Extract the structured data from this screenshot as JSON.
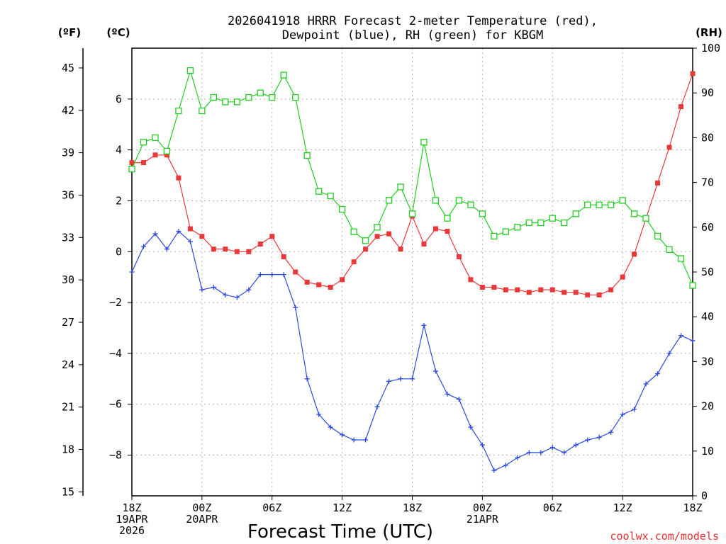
{
  "chart_data": {
    "type": "line",
    "title_lines": [
      "2026041918 HRRR Forecast 2-meter Temperature (red),",
      "Dewpoint (blue), RH (green) for KBGM"
    ],
    "xlabel": "Forecast Time (UTC)",
    "credit": "coolwx.com/models",
    "axis_units": {
      "left_outer": "(ºF)",
      "left_inner": "(ºC)",
      "right": "(RH)"
    },
    "x_range_hours": [
      0,
      48
    ],
    "x_ticks": [
      {
        "hour": 0,
        "lines": [
          "18Z",
          "19APR",
          "2026"
        ]
      },
      {
        "hour": 6,
        "lines": [
          "00Z",
          "20APR"
        ]
      },
      {
        "hour": 12,
        "lines": [
          "06Z"
        ]
      },
      {
        "hour": 18,
        "lines": [
          "12Z"
        ]
      },
      {
        "hour": 24,
        "lines": [
          "18Z"
        ]
      },
      {
        "hour": 30,
        "lines": [
          "00Z",
          "21APR"
        ]
      },
      {
        "hour": 36,
        "lines": [
          "06Z"
        ]
      },
      {
        "hour": 42,
        "lines": [
          "12Z"
        ]
      },
      {
        "hour": 48,
        "lines": [
          "18Z"
        ]
      }
    ],
    "celsius_range": [
      -9.6,
      8.0
    ],
    "celsius_ticks": [
      "6",
      "4",
      "2",
      "0",
      "−2",
      "−4",
      "−6",
      "−8"
    ],
    "fahrenheit_ticks": [
      "45",
      "42",
      "39",
      "36",
      "33",
      "30",
      "27",
      "24",
      "21",
      "18",
      "15"
    ],
    "rh_range": [
      0,
      100
    ],
    "rh_ticks": [
      "100",
      "90",
      "80",
      "70",
      "60",
      "50",
      "40",
      "30",
      "20",
      "10",
      "0"
    ],
    "grid": true,
    "series": [
      {
        "name": "Temperature",
        "unit": "C",
        "color": "#e83838",
        "marker": "filled-square",
        "values": [
          3.5,
          3.5,
          3.8,
          3.8,
          2.9,
          0.9,
          0.6,
          0.1,
          0.1,
          0.0,
          0.0,
          0.3,
          0.6,
          -0.2,
          -0.8,
          -1.2,
          -1.3,
          -1.4,
          -1.1,
          -0.4,
          0.1,
          0.6,
          0.7,
          0.1,
          1.4,
          0.3,
          0.9,
          0.8,
          -0.2,
          -1.1,
          -1.4,
          -1.4,
          -1.5,
          -1.5,
          -1.6,
          -1.5,
          -1.5,
          -1.6,
          -1.6,
          -1.7,
          -1.7,
          -1.5,
          -1.0,
          -0.1,
          1.3,
          2.7,
          4.1,
          5.7,
          7.0
        ]
      },
      {
        "name": "Dewpoint",
        "unit": "C",
        "color": "#2a4adf",
        "marker": "plus",
        "values": [
          -0.8,
          0.2,
          0.7,
          0.1,
          0.8,
          0.4,
          -1.5,
          -1.4,
          -1.7,
          -1.8,
          -1.5,
          -0.9,
          -0.9,
          -0.9,
          -2.2,
          -5.0,
          -6.4,
          -6.9,
          -7.2,
          -7.4,
          -7.4,
          -6.1,
          -5.1,
          -5.0,
          -5.0,
          -2.9,
          -4.7,
          -5.6,
          -5.8,
          -6.9,
          -7.6,
          -8.6,
          -8.4,
          -8.1,
          -7.9,
          -7.9,
          -7.7,
          -7.9,
          -7.6,
          -7.4,
          -7.3,
          -7.1,
          -6.4,
          -6.2,
          -5.2,
          -4.8,
          -4.0,
          -3.3,
          -3.5
        ]
      },
      {
        "name": "RH",
        "unit": "%",
        "color": "#22cc22",
        "marker": "open-square",
        "values": [
          73,
          79,
          80,
          77,
          86,
          95,
          86,
          89,
          88,
          88,
          89,
          90,
          89,
          94,
          89,
          76,
          68,
          67,
          64,
          59,
          57,
          60,
          66,
          69,
          63,
          79,
          66,
          62,
          66,
          65,
          63,
          58,
          59,
          60,
          61,
          61,
          62,
          61,
          63,
          65,
          65,
          65,
          66,
          63,
          62,
          58,
          55,
          53,
          47
        ]
      }
    ]
  }
}
